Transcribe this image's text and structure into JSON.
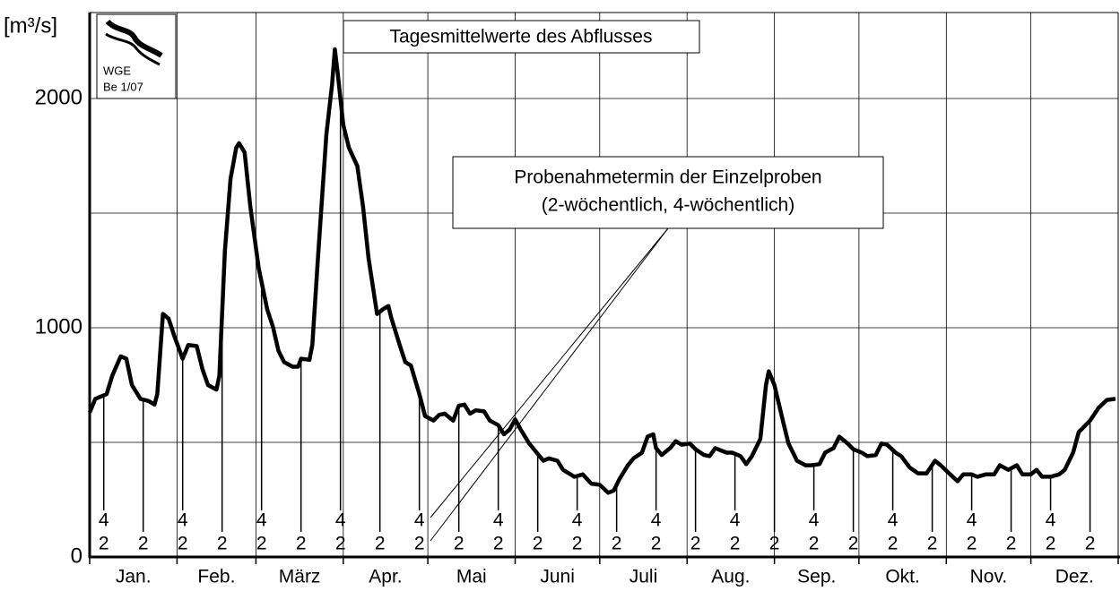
{
  "chart_data": {
    "type": "line",
    "title": "Tagesmittelwerte des Abflusses",
    "y_label": "[m³/s]",
    "annotation": [
      "Probenahmetermin der Einzelproben",
      "(2-wöchentlich, 4-wöchentlich)"
    ],
    "logo": [
      "WGE",
      "Be 1/07"
    ],
    "categories": [
      "Jan.",
      "Feb.",
      "März",
      "Apr.",
      "Mai",
      "Juni",
      "Juli",
      "Aug.",
      "Sep.",
      "Okt.",
      "Nov.",
      "Dez."
    ],
    "xlim": [
      0,
      365
    ],
    "xticks": [
      0,
      31,
      59,
      90,
      120,
      151,
      181,
      212,
      243,
      273,
      304,
      334,
      365
    ],
    "ylim": [
      0,
      2375
    ],
    "yticks": [
      {
        "value": 0,
        "label": "0"
      },
      {
        "value": 500,
        "label": ""
      },
      {
        "value": 1000,
        "label": "1000"
      },
      {
        "value": 1500,
        "label": ""
      },
      {
        "value": 2000,
        "label": "2000"
      }
    ],
    "grid": true,
    "series": [
      {
        "name": "Abfluss",
        "color": "#000000",
        "x": [
          0,
          2,
          6,
          8,
          11,
          13,
          15,
          18,
          21,
          23,
          24,
          26,
          28,
          30,
          33,
          35,
          38,
          40,
          42,
          45,
          46,
          48,
          50,
          52,
          53,
          55,
          57,
          60,
          63,
          65,
          67,
          69,
          72,
          74,
          75,
          78,
          79,
          81,
          84,
          86,
          87,
          88,
          90,
          92,
          95,
          97,
          99,
          102,
          104,
          106,
          107,
          110,
          112,
          114,
          117,
          119,
          122,
          124,
          126,
          129,
          131,
          133,
          135,
          137,
          140,
          142,
          145,
          147,
          149,
          151,
          153,
          156,
          158,
          161,
          163,
          166,
          168,
          172,
          175,
          178,
          181,
          184,
          186,
          188,
          191,
          193,
          196,
          198,
          200,
          201,
          203,
          206,
          208,
          210,
          213,
          215,
          218,
          220,
          222,
          226,
          228,
          231,
          233,
          235,
          238,
          240,
          241,
          243,
          246,
          248,
          251,
          254,
          256,
          259,
          261,
          264,
          266,
          269,
          271,
          274,
          276,
          279,
          281,
          283,
          286,
          288,
          291,
          294,
          297,
          300,
          302,
          305,
          308,
          310,
          313,
          315,
          318,
          321,
          323,
          326,
          329,
          331,
          334,
          336,
          338,
          341,
          344,
          346,
          349,
          351,
          355,
          358,
          361,
          364
        ],
        "values": [
          630,
          690,
          710,
          790,
          875,
          865,
          750,
          690,
          680,
          665,
          710,
          1060,
          1040,
          965,
          865,
          925,
          920,
          820,
          750,
          730,
          790,
          1335,
          1650,
          1785,
          1805,
          1765,
          1530,
          1260,
          1080,
          1005,
          900,
          850,
          830,
          830,
          865,
          860,
          925,
          1300,
          1845,
          2060,
          2215,
          2115,
          1885,
          1785,
          1705,
          1530,
          1300,
          1060,
          1080,
          1095,
          1045,
          925,
          850,
          835,
          710,
          615,
          595,
          620,
          625,
          595,
          660,
          665,
          625,
          640,
          635,
          595,
          575,
          535,
          555,
          600,
          555,
          495,
          465,
          420,
          430,
          420,
          380,
          350,
          360,
          320,
          315,
          280,
          290,
          340,
          400,
          430,
          455,
          525,
          535,
          475,
          445,
          475,
          505,
          490,
          495,
          470,
          445,
          440,
          475,
          455,
          455,
          440,
          405,
          440,
          515,
          750,
          810,
          750,
          595,
          495,
          420,
          400,
          400,
          405,
          455,
          475,
          525,
          495,
          470,
          455,
          440,
          445,
          495,
          490,
          455,
          440,
          390,
          365,
          365,
          420,
          400,
          365,
          330,
          360,
          360,
          350,
          360,
          360,
          400,
          380,
          400,
          360,
          360,
          380,
          350,
          350,
          360,
          380,
          455,
          545,
          595,
          650,
          685,
          690
        ]
      }
    ],
    "samples": {
      "label_2": "2",
      "label_4": "4",
      "two_weekly": [
        5,
        19,
        33,
        47,
        61,
        75,
        89,
        103,
        117,
        131,
        145,
        159,
        173,
        187,
        201,
        215,
        229,
        243,
        257,
        271,
        285,
        299,
        313,
        327,
        341,
        355
      ],
      "four_weekly": [
        5,
        33,
        61,
        89,
        117,
        145,
        173,
        201,
        229,
        257,
        285,
        313,
        341
      ]
    }
  }
}
